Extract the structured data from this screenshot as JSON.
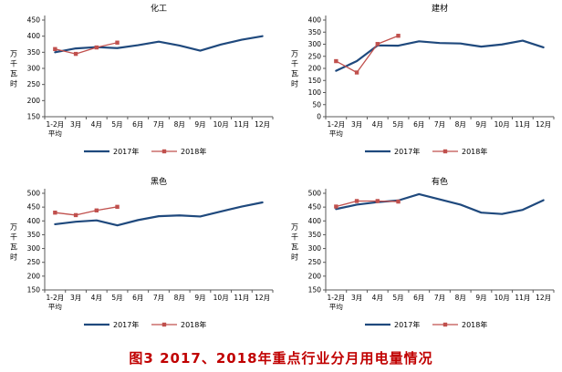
{
  "caption": "图3  2017、2018年重点行业分月用电量情况",
  "colors": {
    "series_2017": "#1F497D",
    "series_2018": "#C0504D",
    "caption": "#C00000",
    "axis": "#595959",
    "tick_text": "#000000",
    "background": "#FFFFFF"
  },
  "legend": {
    "series1_label": "2017年",
    "series2_label": "2018年"
  },
  "chart_data": [
    {
      "type": "line",
      "title": "化工",
      "ylabel": "万千瓦时",
      "ylim": [
        150,
        450
      ],
      "ystep": 50,
      "legend_position": "bottom",
      "grid": false,
      "categories": [
        "1-2月\n平均",
        "3月",
        "4月",
        "5月",
        "6月",
        "7月",
        "8月",
        "9月",
        "10月",
        "11月",
        "12月"
      ],
      "series": [
        {
          "name": "2017年",
          "color": "#1F497D",
          "marker": "none",
          "values": [
            350,
            362,
            366,
            363,
            372,
            383,
            371,
            355,
            374,
            389,
            400
          ]
        },
        {
          "name": "2018年",
          "color": "#C0504D",
          "marker": "square",
          "values": [
            360,
            345,
            365,
            380
          ]
        }
      ]
    },
    {
      "type": "line",
      "title": "建材",
      "ylabel": "万千瓦时",
      "ylim": [
        0,
        400
      ],
      "ystep": 50,
      "legend_position": "bottom",
      "grid": false,
      "categories": [
        "1-2月\n平均",
        "3月",
        "4月",
        "5月",
        "6月",
        "7月",
        "8月",
        "9月",
        "10月",
        "11月",
        "12月"
      ],
      "series": [
        {
          "name": "2017年",
          "color": "#1F497D",
          "marker": "none",
          "values": [
            190,
            230,
            295,
            294,
            312,
            305,
            303,
            290,
            299,
            315,
            287
          ]
        },
        {
          "name": "2018年",
          "color": "#C0504D",
          "marker": "square",
          "values": [
            230,
            183,
            301,
            335
          ]
        }
      ]
    },
    {
      "type": "line",
      "title": "黑色",
      "ylabel": "万千瓦时",
      "ylim": [
        150,
        500
      ],
      "ystep": 50,
      "legend_position": "bottom",
      "grid": false,
      "categories": [
        "1-2月\n平均",
        "3月",
        "4月",
        "5月",
        "6月",
        "7月",
        "8月",
        "9月",
        "10月",
        "11月",
        "12月"
      ],
      "series": [
        {
          "name": "2017年",
          "color": "#1F497D",
          "marker": "none",
          "values": [
            388,
            397,
            402,
            384,
            403,
            417,
            420,
            416,
            434,
            452,
            467
          ]
        },
        {
          "name": "2018年",
          "color": "#C0504D",
          "marker": "square",
          "values": [
            430,
            421,
            438,
            451
          ]
        }
      ]
    },
    {
      "type": "line",
      "title": "有色",
      "ylabel": "万千瓦时",
      "ylim": [
        150,
        500
      ],
      "ystep": 50,
      "legend_position": "bottom",
      "grid": false,
      "categories": [
        "1-2月\n平均",
        "3月",
        "4月",
        "5月",
        "6月",
        "7月",
        "8月",
        "9月",
        "10月",
        "11月",
        "12月"
      ],
      "series": [
        {
          "name": "2017年",
          "color": "#1F497D",
          "marker": "none",
          "values": [
            443,
            459,
            468,
            474,
            497,
            478,
            459,
            430,
            425,
            440,
            475
          ]
        },
        {
          "name": "2018年",
          "color": "#C0504D",
          "marker": "square",
          "values": [
            452,
            472,
            472,
            470
          ]
        }
      ]
    }
  ]
}
